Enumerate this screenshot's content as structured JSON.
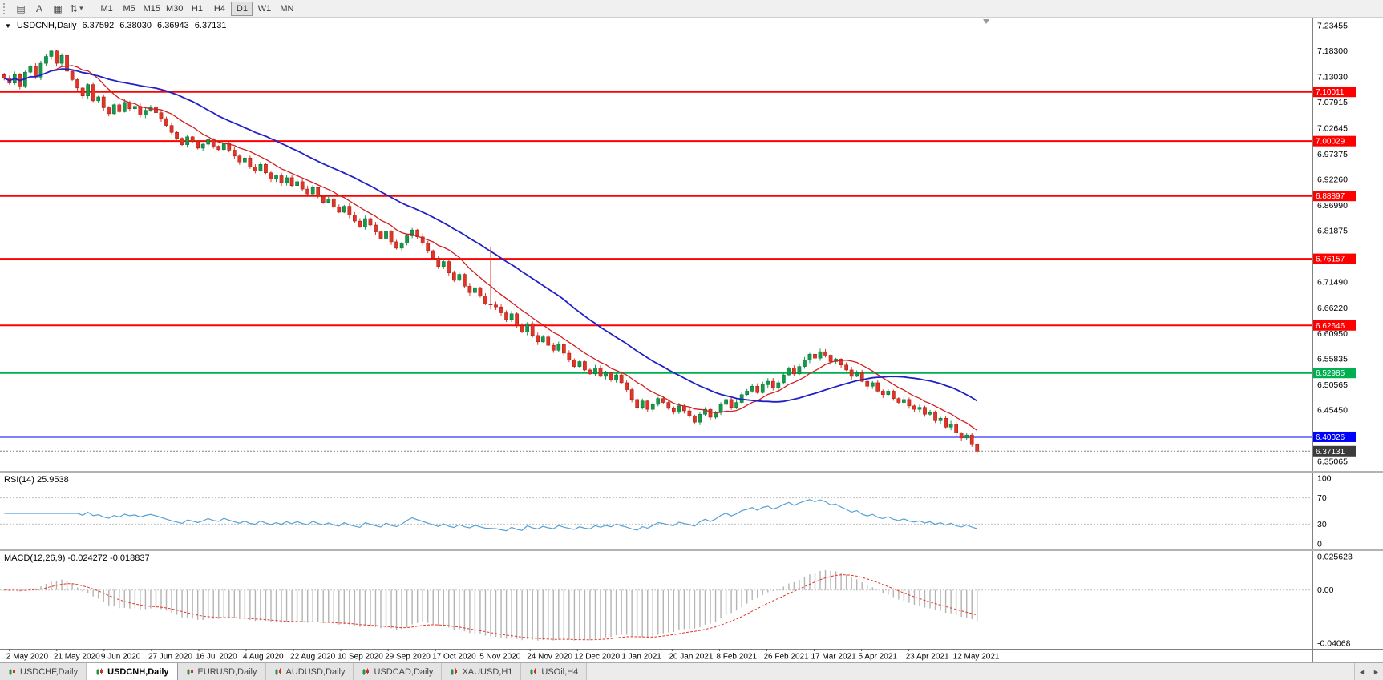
{
  "toolbar": {
    "icons": [
      {
        "name": "chart-list",
        "glyph": "▤"
      },
      {
        "name": "annotation",
        "glyph": "A"
      },
      {
        "name": "grid",
        "glyph": "▦"
      },
      {
        "name": "cycle-arrows",
        "glyph": "⇅"
      },
      {
        "name": "dropdown-caret",
        "glyph": "▾"
      }
    ],
    "timeframes": [
      {
        "label": "M1"
      },
      {
        "label": "M5"
      },
      {
        "label": "M15"
      },
      {
        "label": "M30"
      },
      {
        "label": "H1"
      },
      {
        "label": "H4"
      },
      {
        "label": "D1"
      },
      {
        "label": "W1"
      },
      {
        "label": "MN"
      }
    ],
    "active_timeframe": "D1"
  },
  "chart": {
    "header": {
      "collapse_glyph": "▼",
      "symbol": "USDCNH,Daily",
      "open": "6.37592",
      "high": "6.38030",
      "low": "6.36943",
      "close": "6.37131"
    }
  },
  "chart_data": {
    "type": "candlestick",
    "symbol": "USDCNH",
    "timeframe": "Daily",
    "ohlc_readout": {
      "open": 6.37592,
      "high": 6.3803,
      "low": 6.36943,
      "close": 6.37131
    },
    "price_axis": {
      "range": [
        6.35065,
        7.23455
      ],
      "ticks": [
        7.23455,
        7.183,
        7.1303,
        7.07915,
        7.02645,
        6.97375,
        6.9226,
        6.8699,
        6.81875,
        6.76605,
        6.7149,
        6.6622,
        6.6095,
        6.55835,
        6.50565,
        6.4545,
        6.4018,
        6.35065
      ]
    },
    "levels": [
      {
        "value": 7.10011,
        "color": "#ff0000",
        "label": "7.10011"
      },
      {
        "value": 7.00029,
        "color": "#ff0000",
        "label": "7.00029"
      },
      {
        "value": 6.88897,
        "color": "#ff0000",
        "label": "6.88897"
      },
      {
        "value": 6.76157,
        "color": "#ff0000",
        "label": "6.76157"
      },
      {
        "value": 6.62646,
        "color": "#ff0000",
        "label": "6.62646"
      },
      {
        "value": 6.52985,
        "color": "#00b050",
        "label": "6.52985"
      },
      {
        "value": 6.40026,
        "color": "#0000ff",
        "label": "6.40026"
      }
    ],
    "last_price": {
      "value": 6.37131,
      "label": "6.37131",
      "badge_color": "#3c3c3c"
    },
    "closes": [
      7.128,
      7.118,
      7.135,
      7.112,
      7.14,
      7.152,
      7.13,
      7.158,
      7.172,
      7.183,
      7.158,
      7.174,
      7.142,
      7.125,
      7.108,
      7.092,
      7.115,
      7.082,
      7.09,
      7.068,
      7.056,
      7.074,
      7.06,
      7.079,
      7.066,
      7.071,
      7.053,
      7.063,
      7.069,
      7.058,
      7.046,
      7.032,
      7.018,
      7.006,
      6.993,
      7.009,
      7.0,
      6.986,
      6.994,
      7.004,
      6.99,
      6.983,
      6.996,
      6.982,
      6.97,
      6.958,
      6.966,
      6.948,
      6.94,
      6.953,
      6.936,
      6.923,
      6.93,
      6.916,
      6.926,
      6.91,
      6.918,
      6.903,
      6.893,
      6.906,
      6.888,
      6.876,
      6.883,
      6.866,
      6.856,
      6.868,
      6.85,
      6.838,
      6.826,
      6.843,
      6.83,
      6.816,
      6.803,
      6.818,
      6.796,
      6.783,
      6.793,
      6.808,
      6.82,
      6.806,
      6.793,
      6.778,
      6.763,
      6.746,
      6.756,
      6.733,
      6.718,
      6.73,
      6.706,
      6.693,
      6.703,
      6.686,
      6.67,
      6.668,
      6.664,
      6.652,
      6.638,
      6.65,
      6.626,
      6.613,
      6.63,
      6.606,
      6.593,
      6.603,
      6.586,
      6.576,
      6.588,
      6.57,
      6.556,
      6.543,
      6.553,
      6.536,
      6.528,
      6.54,
      6.523,
      6.53,
      6.516,
      6.526,
      6.51,
      6.496,
      6.476,
      6.46,
      6.473,
      6.456,
      6.466,
      6.478,
      6.47,
      6.458,
      6.45,
      6.463,
      6.453,
      6.443,
      6.43,
      6.446,
      6.456,
      6.44,
      6.45,
      6.466,
      6.476,
      6.46,
      6.47,
      6.486,
      6.493,
      6.503,
      6.49,
      6.506,
      6.513,
      6.5,
      6.51,
      6.526,
      6.54,
      6.528,
      6.543,
      6.556,
      6.568,
      6.56,
      6.573,
      6.566,
      6.553,
      6.558,
      6.546,
      6.536,
      6.523,
      6.53,
      6.513,
      6.503,
      6.51,
      6.493,
      6.486,
      6.493,
      6.478,
      6.47,
      6.476,
      6.463,
      6.456,
      6.46,
      6.446,
      6.45,
      6.433,
      6.438,
      6.42,
      6.426,
      6.408,
      6.398,
      6.404,
      6.386,
      6.3713
    ],
    "wick_overrides": {
      "93": [
        6.786,
        6.659
      ]
    },
    "moving_averages": [
      {
        "name": "ma-fast-line",
        "period": 10,
        "color": "#d02020",
        "width": 1.3
      },
      {
        "name": "ma-slow-line",
        "period": 30,
        "color": "#2020c8",
        "width": 1.8
      }
    ],
    "x_labels": [
      "2 May 2020",
      "21 May 2020",
      "9 Jun 2020",
      "27 Jun 2020",
      "16 Jul 2020",
      "4 Aug 2020",
      "22 Aug 2020",
      "10 Sep 2020",
      "29 Sep 2020",
      "17 Oct 2020",
      "5 Nov 2020",
      "24 Nov 2020",
      "12 Dec 2020",
      "1 Jan 2021",
      "20 Jan 2021",
      "8 Feb 2021",
      "26 Feb 2021",
      "17 Mar 2021",
      "5 Apr 2021",
      "23 Apr 2021",
      "12 May 2021"
    ],
    "rsi": {
      "label": "RSI(14) 25.9538",
      "period": 14,
      "value": 25.9538,
      "overbought": 70,
      "oversold": 30,
      "axis_ticks": [
        100,
        70,
        30,
        0
      ],
      "color": "#56a2d6"
    },
    "macd": {
      "label": "MACD(12,26,9) -0.024272 -0.018837",
      "fast": 12,
      "slow": 26,
      "signal": 9,
      "values": [
        -0.024272,
        -0.018837
      ],
      "range": [
        -0.04068,
        0.025623
      ],
      "axis_ticks": [
        {
          "value": 0.025623,
          "label": "0.025623"
        },
        {
          "value": 0,
          "label": "0.00"
        },
        {
          "value": -0.04068,
          "label": "-0.04068"
        }
      ]
    }
  },
  "tabs": {
    "items": [
      {
        "label": "USDCHF,Daily",
        "active": false
      },
      {
        "label": "USDCNH,Daily",
        "active": true
      },
      {
        "label": "EURUSD,Daily",
        "active": false
      },
      {
        "label": "AUDUSD,Daily",
        "active": false
      },
      {
        "label": "USDCAD,Daily",
        "active": false
      },
      {
        "label": "XAUUSD,H1",
        "active": false
      },
      {
        "label": "USOil,H4",
        "active": false
      }
    ],
    "nav_left": "◄",
    "nav_right": "►"
  }
}
